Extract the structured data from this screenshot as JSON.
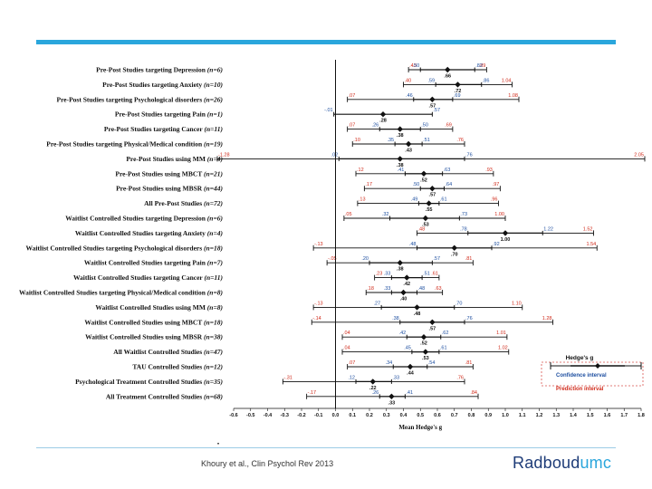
{
  "footer": {
    "citation": "Khoury et al., Clin Psychol Rev 2013",
    "brand_main": "Radboud",
    "brand_accent": "umc"
  },
  "colors": {
    "accent_blue": "#2aa6dc",
    "brand_navy": "#1e3c78",
    "ci_color": "#1e4fa0",
    "pi_color": "#d02a1a"
  },
  "chart_data": {
    "type": "forest",
    "xlabel": "Mean Hedge's g",
    "xlim": [
      -0.6,
      1.8
    ],
    "xticks": [
      "-0.6",
      "-0.5",
      "-0.4",
      "-0.3",
      "-0.2",
      "-0.1",
      "0.0",
      "0.1",
      "0.2",
      "0.3",
      "0.4",
      "0.5",
      "0.6",
      "0.7",
      "0.8",
      "0.9",
      "1.0",
      "1.1",
      "1.2",
      "1.3",
      "1.4",
      "1.5",
      "1.6",
      "1.7",
      "1.8"
    ],
    "reference_line": 0,
    "legend": {
      "title": "Hedge's g",
      "ci_label": "Confidence interval",
      "pi_label": "Prediction interval",
      "placement": "bottom-right"
    },
    "rows": [
      {
        "label": "Pre-Post Studies targeting Depression",
        "n": "(n=6)",
        "est": 0.66,
        "est_label": ".66",
        "ci": [
          0.5,
          0.82
        ],
        "ci_labels": [
          ".50",
          ".82"
        ],
        "pi": [
          0.43,
          0.89
        ],
        "pi_labels": [
          ".43",
          ".89"
        ]
      },
      {
        "label": "Pre-Post Studies targeting Anxiety",
        "n": "(n=10)",
        "est": 0.72,
        "est_label": ".72",
        "ci": [
          0.59,
          0.86
        ],
        "ci_labels": [
          ".59",
          ".86"
        ],
        "pi": [
          0.4,
          1.04
        ],
        "pi_labels": [
          ".40",
          "1.04"
        ]
      },
      {
        "label": "Pre-Post Studies targeting Psychological disorders",
        "n": "(n=26)",
        "est": 0.57,
        "est_label": ".57",
        "ci": [
          0.46,
          0.69
        ],
        "ci_labels": [
          ".46",
          ".69"
        ],
        "pi": [
          0.07,
          1.08
        ],
        "pi_labels": [
          ".07",
          "1.08"
        ]
      },
      {
        "label": "Pre-Post Studies targeting Pain",
        "n": "(n=1)",
        "est": 0.28,
        "est_label": ".28",
        "ci": [
          -0.01,
          0.57
        ],
        "ci_labels": [
          "-.01",
          ".57"
        ],
        "pi": null,
        "pi_labels": null
      },
      {
        "label": "Pre-Post Studies targeting Cancer",
        "n": "(n=11)",
        "est": 0.38,
        "est_label": ".38",
        "ci": [
          0.26,
          0.5
        ],
        "ci_labels": [
          ".26",
          ".50"
        ],
        "pi": [
          0.07,
          0.69
        ],
        "pi_labels": [
          ".07",
          ".69"
        ]
      },
      {
        "label": "Pre-Post Studies targeting Physical/Medical condition",
        "n": "(n=19)",
        "est": 0.43,
        "est_label": ".43",
        "ci": [
          0.35,
          0.51
        ],
        "ci_labels": [
          ".35",
          ".51"
        ],
        "pi": [
          0.1,
          0.76
        ],
        "pi_labels": [
          ".10",
          ".76"
        ]
      },
      {
        "label": "Pre-Post Studies using MM",
        "n": "(n=4)",
        "est": 0.38,
        "est_label": ".38",
        "ci": [
          0.02,
          0.76
        ],
        "ci_labels": [
          ".02",
          ".76"
        ],
        "pi": [
          -1.28,
          2.05
        ],
        "pi_labels": [
          "-1.28",
          "2.05"
        ]
      },
      {
        "label": "Pre-Post Studies using MBCT",
        "n": "(n=21)",
        "est": 0.52,
        "est_label": ".52",
        "ci": [
          0.41,
          0.63
        ],
        "ci_labels": [
          ".41",
          ".63"
        ],
        "pi": [
          0.12,
          0.93
        ],
        "pi_labels": [
          ".12",
          ".93"
        ]
      },
      {
        "label": "Pre-Post Studies using MBSR",
        "n": "(n=44)",
        "est": 0.57,
        "est_label": ".57",
        "ci": [
          0.5,
          0.64
        ],
        "ci_labels": [
          ".50",
          ".64"
        ],
        "pi": [
          0.17,
          0.97
        ],
        "pi_labels": [
          ".17",
          ".97"
        ]
      },
      {
        "label": "All Pre-Post Studies",
        "n": "(n=72)",
        "est": 0.55,
        "est_label": ".55",
        "ci": [
          0.49,
          0.61
        ],
        "ci_labels": [
          ".49",
          ".61"
        ],
        "pi": [
          0.13,
          0.96
        ],
        "pi_labels": [
          ".13",
          ".96"
        ]
      },
      {
        "label": "Waitlist Controlled Studies targeting Depression",
        "n": "(n=6)",
        "est": 0.53,
        "est_label": ".53",
        "ci": [
          0.32,
          0.73
        ],
        "ci_labels": [
          ".32",
          ".73"
        ],
        "pi": [
          0.05,
          1.0
        ],
        "pi_labels": [
          ".05",
          "1.00"
        ]
      },
      {
        "label": "Waitlist Controlled Studies targeting Anxiety",
        "n": "(n=4)",
        "est": 1.0,
        "est_label": "1.00",
        "ci": [
          0.78,
          1.22
        ],
        "ci_labels": [
          ".78",
          "1.22"
        ],
        "pi": [
          0.48,
          1.52
        ],
        "pi_labels": [
          ".48",
          "1.52"
        ]
      },
      {
        "label": "Waitlist Controlled Studies targeting Psychological disorders",
        "n": "(n=18)",
        "est": 0.7,
        "est_label": ".70",
        "ci": [
          0.48,
          0.92
        ],
        "ci_labels": [
          ".48",
          ".92"
        ],
        "pi": [
          -0.13,
          1.54
        ],
        "pi_labels": [
          "-.13",
          "1.54"
        ]
      },
      {
        "label": "Waitlist Controlled Studies targeting Pain",
        "n": "(n=7)",
        "est": 0.38,
        "est_label": ".38",
        "ci": [
          0.2,
          0.57
        ],
        "ci_labels": [
          ".20",
          ".57"
        ],
        "pi": [
          -0.05,
          0.81
        ],
        "pi_labels": [
          "-.05",
          ".81"
        ]
      },
      {
        "label": "Waitlist Controlled Studies targeting Cancer",
        "n": "(n=11)",
        "est": 0.42,
        "est_label": ".42",
        "ci": [
          0.33,
          0.51
        ],
        "ci_labels": [
          ".33",
          ".51"
        ],
        "pi": [
          0.23,
          0.61
        ],
        "pi_labels": [
          ".23",
          ".61"
        ]
      },
      {
        "label": "Waitlist Controlled Studies targeting Physical/Medical condition",
        "n": "(n=8)",
        "est": 0.4,
        "est_label": ".40",
        "ci": [
          0.33,
          0.48
        ],
        "ci_labels": [
          ".33",
          ".48"
        ],
        "pi": [
          0.18,
          0.63
        ],
        "pi_labels": [
          ".18",
          ".63"
        ]
      },
      {
        "label": "Waitlist Controlled Studies using MM",
        "n": "(n=8)",
        "est": 0.48,
        "est_label": ".48",
        "ci": [
          0.27,
          0.7
        ],
        "ci_labels": [
          ".27",
          ".70"
        ],
        "pi": [
          -0.13,
          1.1
        ],
        "pi_labels": [
          "-.13",
          "1.10"
        ]
      },
      {
        "label": "Waitlist Controlled Studies using MBCT",
        "n": "(n=18)",
        "est": 0.57,
        "est_label": ".57",
        "ci": [
          0.38,
          0.76
        ],
        "ci_labels": [
          ".38",
          ".76"
        ],
        "pi": [
          -0.14,
          1.28
        ],
        "pi_labels": [
          "-.14",
          "1.28"
        ]
      },
      {
        "label": "Waitlist Controlled Studies using MBSR",
        "n": "(n=38)",
        "est": 0.52,
        "est_label": ".52",
        "ci": [
          0.42,
          0.62
        ],
        "ci_labels": [
          ".42",
          ".62"
        ],
        "pi": [
          0.04,
          1.01
        ],
        "pi_labels": [
          ".04",
          "1.01"
        ]
      },
      {
        "label": "All Waitlist Controlled Studies",
        "n": "(n=47)",
        "est": 0.53,
        "est_label": ".53",
        "ci": [
          0.45,
          0.61
        ],
        "ci_labels": [
          ".45",
          ".61"
        ],
        "pi": [
          0.04,
          1.02
        ],
        "pi_labels": [
          ".04",
          "1.02"
        ]
      },
      {
        "label": "TAU Controlled Studies",
        "n": "(n=12)",
        "est": 0.44,
        "est_label": ".44",
        "ci": [
          0.34,
          0.54
        ],
        "ci_labels": [
          ".34",
          ".54"
        ],
        "pi": [
          0.07,
          0.81
        ],
        "pi_labels": [
          ".07",
          ".81"
        ]
      },
      {
        "label": "Psychological Treatment Controlled Studies",
        "n": "(n=35)",
        "est": 0.22,
        "est_label": ".22",
        "ci": [
          0.12,
          0.33
        ],
        "ci_labels": [
          ".12",
          ".33"
        ],
        "pi": [
          -0.31,
          0.76
        ],
        "pi_labels": [
          "-.31",
          ".76"
        ]
      },
      {
        "label": "All Treatment Controlled Studies",
        "n": "(n=68)",
        "est": 0.33,
        "est_label": ".33",
        "ci": [
          0.26,
          0.41
        ],
        "ci_labels": [
          ".26",
          ".41"
        ],
        "pi": [
          -0.17,
          0.84
        ],
        "pi_labels": [
          "-.17",
          ".84"
        ]
      }
    ]
  }
}
